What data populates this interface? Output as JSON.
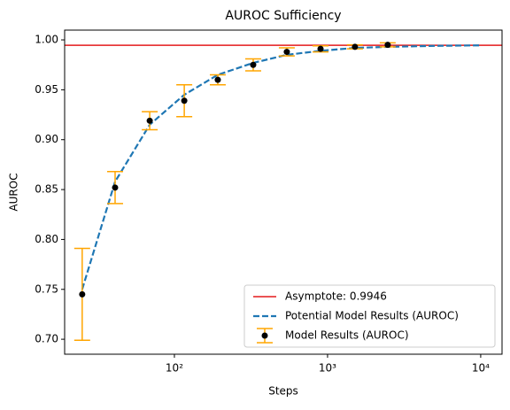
{
  "chart_data": {
    "type": "errorbar-log",
    "title": "AUROC Sufficiency",
    "x_label": "Steps",
    "y_label": "AUROC",
    "log_x": true,
    "xlim": [
      19.2,
      13780
    ],
    "xticks": [
      {
        "value": 100,
        "label": "10²"
      },
      {
        "value": 1000,
        "label": "10³"
      },
      {
        "value": 10000,
        "label": "10⁴"
      }
    ],
    "ylim": [
      0.685,
      1.0098
    ],
    "yticks": [
      {
        "value": 0.7,
        "label": "0.70"
      },
      0.75,
      {
        "value": 0.8,
        "label": "0.80"
      },
      0.85,
      {
        "value": 0.9,
        "label": "0.90"
      },
      0.95,
      {
        "value": 1.0,
        "label": "1.00"
      }
    ],
    "legend_position": "lower right",
    "asymptote": {
      "name": "Asymptote: 0.9946",
      "value": 0.9946,
      "color": "#e41a1c"
    },
    "fit": {
      "name": "Potential Model Results (AUROC)",
      "color": "#1f77b4",
      "x": [
        25,
        41,
        69,
        116,
        192,
        327,
        542,
        900,
        1510,
        2470,
        5000,
        10000
      ],
      "values": [
        0.75,
        0.858,
        0.915,
        0.945,
        0.965,
        0.977,
        0.985,
        0.989,
        0.992,
        0.993,
        0.994,
        0.9945
      ]
    },
    "points": {
      "name": "Model Results (AUROC)",
      "color": "#000000",
      "error_color": "#ffa500",
      "x": [
        25,
        41,
        69,
        116,
        192,
        327,
        542,
        900,
        1510,
        2470
      ],
      "values": [
        0.745,
        0.852,
        0.919,
        0.939,
        0.96,
        0.975,
        0.988,
        0.991,
        0.993,
        0.995
      ],
      "errors": [
        0.046,
        0.016,
        0.009,
        0.016,
        0.005,
        0.006,
        0.004,
        0.003,
        0.002,
        0.002
      ]
    }
  }
}
